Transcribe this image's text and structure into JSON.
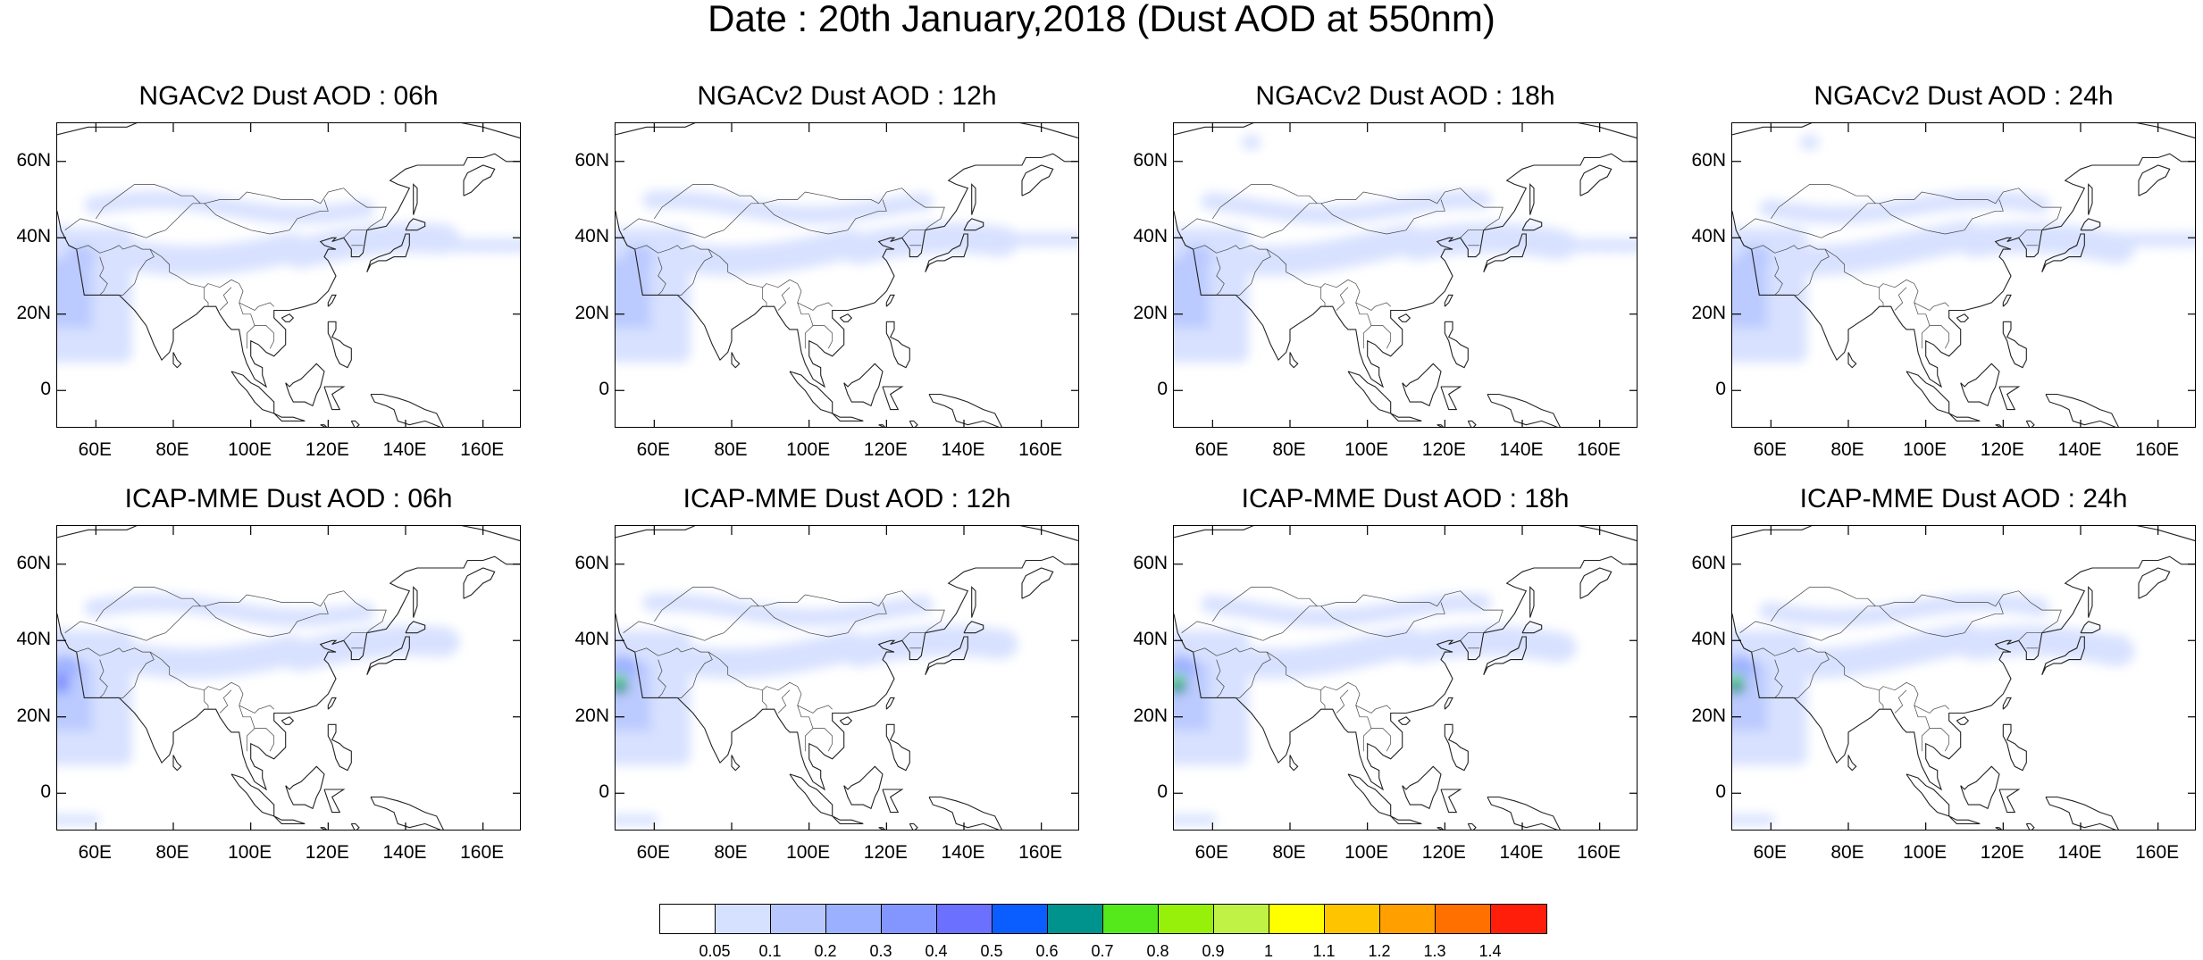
{
  "title": "Date : 20th January,2018 (Dust AOD at 550nm)",
  "panels": [
    {
      "title": "NGACv2 Dust AOD : 06h",
      "model": "NGACv2",
      "hour": "06h"
    },
    {
      "title": "NGACv2 Dust AOD : 12h",
      "model": "NGACv2",
      "hour": "12h"
    },
    {
      "title": "NGACv2 Dust AOD : 18h",
      "model": "NGACv2",
      "hour": "18h"
    },
    {
      "title": "NGACv2 Dust AOD : 24h",
      "model": "NGACv2",
      "hour": "24h"
    },
    {
      "title": "ICAP-MME Dust AOD : 06h",
      "model": "ICAP-MME",
      "hour": "06h"
    },
    {
      "title": "ICAP-MME Dust AOD : 12h",
      "model": "ICAP-MME",
      "hour": "12h"
    },
    {
      "title": "ICAP-MME Dust AOD : 18h",
      "model": "ICAP-MME",
      "hour": "18h"
    },
    {
      "title": "ICAP-MME Dust AOD : 24h",
      "model": "ICAP-MME",
      "hour": "24h"
    }
  ],
  "map_extent": {
    "lon_range": [
      50,
      170
    ],
    "lat_range": [
      -10,
      70
    ]
  },
  "lat_ticks": [
    {
      "value": 60,
      "label": "60N"
    },
    {
      "value": 40,
      "label": "40N"
    },
    {
      "value": 20,
      "label": "20N"
    },
    {
      "value": 0,
      "label": "0"
    }
  ],
  "lon_ticks": [
    {
      "value": 60,
      "label": "60E"
    },
    {
      "value": 80,
      "label": "80E"
    },
    {
      "value": 100,
      "label": "100E"
    },
    {
      "value": 120,
      "label": "120E"
    },
    {
      "value": 140,
      "label": "140E"
    },
    {
      "value": 160,
      "label": "160E"
    }
  ],
  "colorbar": {
    "labels": [
      "0.05",
      "0.1",
      "0.2",
      "0.3",
      "0.4",
      "0.5",
      "0.6",
      "0.7",
      "0.8",
      "0.9",
      "1",
      "1.1",
      "1.2",
      "1.3",
      "1.4"
    ],
    "colors": [
      "#ffffff",
      "#d6e0ff",
      "#b8c8ff",
      "#9bb0ff",
      "#8396ff",
      "#6b70ff",
      "#0a5eff",
      "#00928c",
      "#55e81a",
      "#96f00a",
      "#c0f246",
      "#ffff00",
      "#ffc400",
      "#ff9f00",
      "#ff7000",
      "#ff1e0a"
    ]
  }
}
